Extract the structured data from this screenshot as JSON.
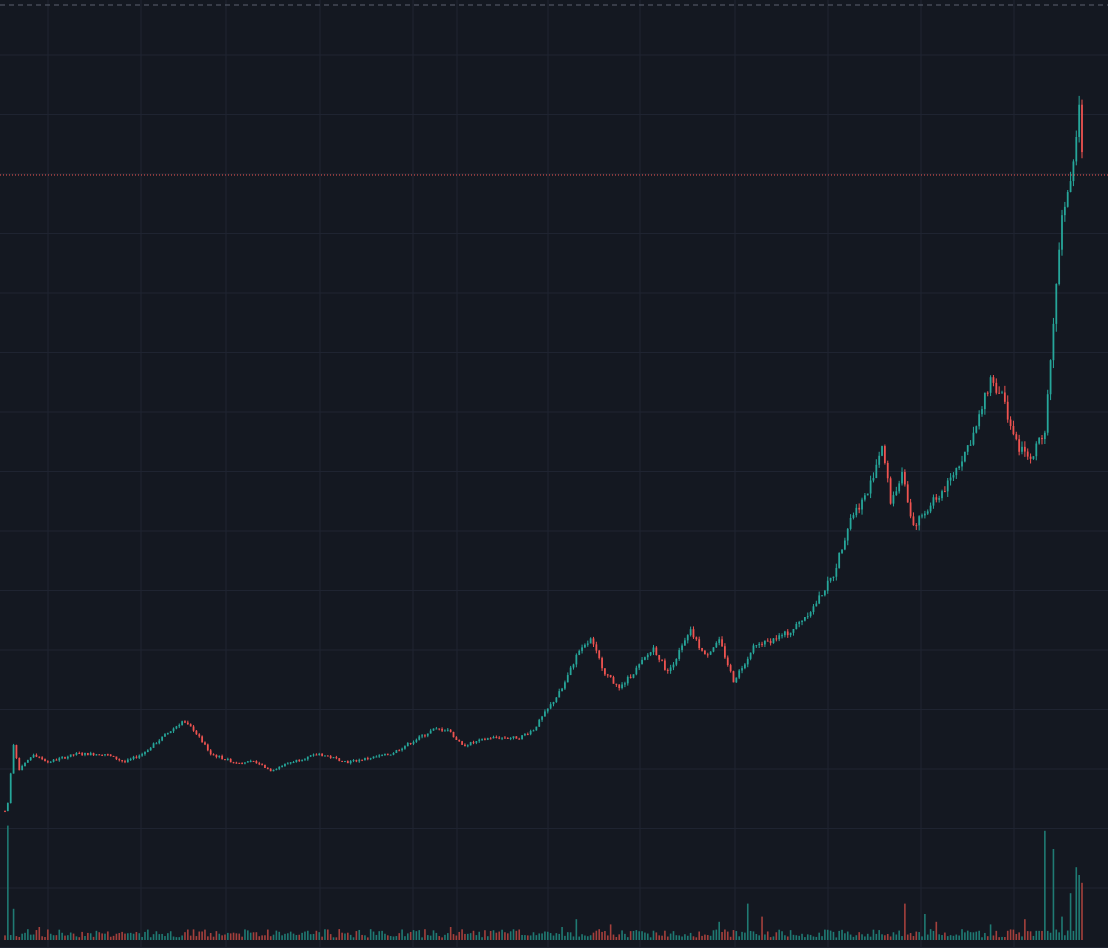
{
  "colors": {
    "background": "#141821",
    "grid": "#1f2431",
    "up": "#26a69a",
    "down": "#ef5350",
    "up_volume": "#1f7a73",
    "down_volume": "#a4403c",
    "dashed_top": "#5b6170"
  },
  "chart_data": {
    "type": "candlestick",
    "title": "",
    "xlabel": "",
    "ylabel": "",
    "grid": true,
    "ylim": [
      0,
      103
    ],
    "volume_ylim": [
      0,
      100
    ],
    "last_price": 84,
    "anchors": [
      [
        0,
        6
      ],
      [
        1,
        7
      ],
      [
        3,
        14
      ],
      [
        5,
        11
      ],
      [
        10,
        13
      ],
      [
        15,
        12
      ],
      [
        25,
        13
      ],
      [
        35,
        13
      ],
      [
        42,
        12
      ],
      [
        48,
        13
      ],
      [
        55,
        15
      ],
      [
        62,
        17
      ],
      [
        66,
        16
      ],
      [
        72,
        13
      ],
      [
        80,
        12
      ],
      [
        88,
        12
      ],
      [
        93,
        11
      ],
      [
        100,
        12
      ],
      [
        110,
        13
      ],
      [
        120,
        12
      ],
      [
        135,
        13
      ],
      [
        150,
        16
      ],
      [
        155,
        16
      ],
      [
        160,
        14
      ],
      [
        170,
        15
      ],
      [
        180,
        15
      ],
      [
        185,
        16
      ],
      [
        195,
        21
      ],
      [
        200,
        25
      ],
      [
        205,
        27
      ],
      [
        210,
        23
      ],
      [
        215,
        21
      ],
      [
        220,
        23
      ],
      [
        227,
        26
      ],
      [
        232,
        23
      ],
      [
        240,
        28
      ],
      [
        245,
        25
      ],
      [
        250,
        27
      ],
      [
        255,
        22
      ],
      [
        262,
        26
      ],
      [
        275,
        28
      ],
      [
        283,
        31
      ],
      [
        290,
        35
      ],
      [
        296,
        42
      ],
      [
        302,
        45
      ],
      [
        307,
        51
      ],
      [
        310,
        44
      ],
      [
        314,
        47
      ],
      [
        318,
        41
      ],
      [
        325,
        44
      ],
      [
        330,
        46
      ],
      [
        336,
        50
      ],
      [
        340,
        53
      ],
      [
        345,
        59
      ],
      [
        349,
        57
      ],
      [
        354,
        51
      ],
      [
        359,
        49
      ],
      [
        364,
        53
      ],
      [
        367,
        66
      ],
      [
        370,
        80
      ],
      [
        373,
        83
      ],
      [
        376,
        92
      ],
      [
        377,
        86
      ]
    ],
    "notable_volume_spikes": [
      [
        1,
        44
      ],
      [
        3,
        12
      ],
      [
        12,
        5
      ],
      [
        50,
        4
      ],
      [
        70,
        4
      ],
      [
        88,
        3
      ],
      [
        156,
        5
      ],
      [
        195,
        5
      ],
      [
        200,
        8
      ],
      [
        212,
        6
      ],
      [
        250,
        7
      ],
      [
        260,
        14
      ],
      [
        265,
        9
      ],
      [
        315,
        14
      ],
      [
        322,
        10
      ],
      [
        326,
        7
      ],
      [
        345,
        6
      ],
      [
        357,
        8
      ],
      [
        364,
        42
      ],
      [
        367,
        35
      ],
      [
        370,
        9
      ],
      [
        373,
        18
      ],
      [
        375,
        28
      ],
      [
        376,
        25
      ],
      [
        377,
        22
      ]
    ]
  }
}
